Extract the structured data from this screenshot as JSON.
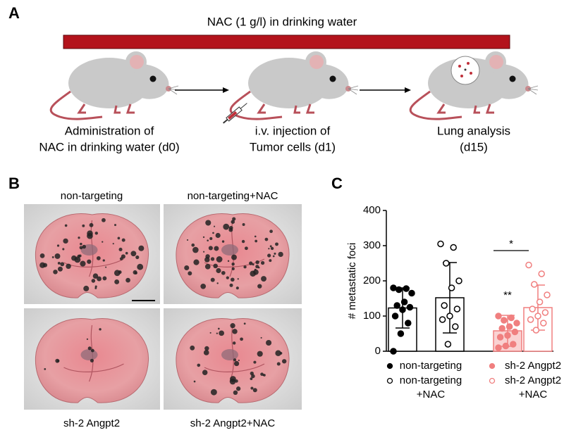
{
  "panel_labels": [
    "A",
    "B",
    "C"
  ],
  "panelA": {
    "banner": "NAC (1 g/l) in drinking water",
    "steps": [
      {
        "line1": "Administration of",
        "line2": "NAC in drinking water (d0)"
      },
      {
        "line1": "i.v. injection of",
        "line2": "Tumor cells (d1)"
      },
      {
        "line1": "Lung analysis",
        "line2": "(d15)"
      }
    ]
  },
  "panelB": {
    "images": [
      {
        "label": "non-targeting"
      },
      {
        "label": "non-targeting+NAC"
      },
      {
        "label": "sh-2 Angpt2"
      },
      {
        "label": "sh-2 Angpt2+NAC"
      }
    ]
  },
  "chart_data": {
    "type": "bar",
    "ylabel": "# metastatic foci",
    "ylim": [
      0,
      400
    ],
    "yticks": [
      0,
      100,
      200,
      300,
      400
    ],
    "annotations": [
      {
        "text": "**"
      },
      {
        "text": "*"
      }
    ],
    "series": [
      {
        "name": "non-targeting",
        "color": "#000000",
        "filled": true,
        "bar_fill": "#ffffff",
        "mean": 123,
        "sd": 57,
        "points": [
          180,
          178,
          175,
          165,
          140,
          130,
          125,
          118,
          100,
          80,
          50,
          0
        ]
      },
      {
        "name": "non-targeting +NAC",
        "color": "#000000",
        "filled": false,
        "bar_fill": "#ffffff",
        "mean": 152,
        "sd": 100,
        "points": [
          305,
          295,
          250,
          200,
          180,
          130,
          120,
          100,
          90,
          70,
          20
        ]
      },
      {
        "name": "sh-2 Angpt2",
        "color": "#f07f7f",
        "filled": true,
        "bar_fill": "#fad2d2",
        "mean": 58,
        "sd": 44,
        "points": [
          100,
          95,
          88,
          80,
          70,
          65,
          55,
          45,
          40,
          20,
          15,
          10
        ]
      },
      {
        "name": "sh-2 Angpt2 +NAC",
        "color": "#f07f7f",
        "filled": false,
        "bar_fill": "#ffffff",
        "mean": 124,
        "sd": 64,
        "points": [
          245,
          220,
          190,
          160,
          140,
          120,
          110,
          100,
          90,
          80,
          60
        ]
      }
    ]
  }
}
